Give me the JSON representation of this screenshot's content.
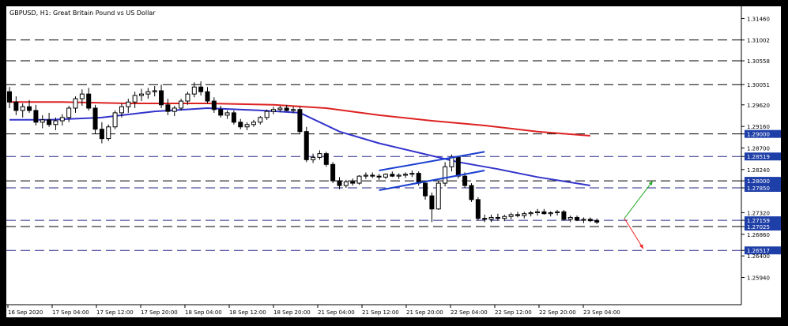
{
  "colors": {
    "window_bg": "#000000",
    "plot_bg": "#ffffff",
    "text": "#000000",
    "grid": "#cccccc",
    "candle": "#000000",
    "ma_fast": "#3333cc",
    "ma_slow": "#dd2222",
    "channel": "#1a3fd0",
    "black_level": "#000000",
    "blue_level": "#2a2a8a",
    "tag_bg": "#1f3fa8",
    "tag_text": "#ffffff",
    "arrow_up": "#22aa22",
    "arrow_down": "#ee2222"
  },
  "chart_data": {
    "type": "candlestick",
    "title": "GBPUSD, H1:  Great Britain Pound vs US Dollar",
    "ylim": [
      1.2536,
      1.3172
    ],
    "y_ticks": [
      "1.31460",
      "1.31002",
      "1.30558",
      "1.30051",
      "1.29620",
      "1.29160",
      "1.29000",
      "1.28700",
      "1.28519",
      "1.28240",
      "1.28000",
      "1.27850",
      "1.27320",
      "1.27159",
      "1.27025",
      "1.26860",
      "1.26517",
      "1.26400",
      "1.25940"
    ],
    "x_ticks": [
      "16 Sep 2020",
      "17 Sep 04:00",
      "17 Sep 12:00",
      "17 Sep 20:00",
      "18 Sep 04:00",
      "18 Sep 12:00",
      "18 Sep 20:00",
      "21 Sep 04:00",
      "21 Sep 12:00",
      "21 Sep 20:00",
      "22 Sep 04:00",
      "22 Sep 12:00",
      "22 Sep 20:00",
      "23 Sep 04:00"
    ],
    "candles": [
      [
        1.299,
        1.3,
        1.2955,
        1.2968
      ],
      [
        1.2968,
        1.298,
        1.294,
        1.295
      ],
      [
        1.295,
        1.2965,
        1.2935,
        1.2958
      ],
      [
        1.2958,
        1.2972,
        1.2945,
        1.295
      ],
      [
        1.295,
        1.2962,
        1.2918,
        1.2925
      ],
      [
        1.2925,
        1.294,
        1.2912,
        1.293
      ],
      [
        1.293,
        1.2945,
        1.2915,
        1.292
      ],
      [
        1.292,
        1.2935,
        1.2908,
        1.2928
      ],
      [
        1.2928,
        1.2942,
        1.2918,
        1.2935
      ],
      [
        1.2935,
        1.296,
        1.2925,
        1.2955
      ],
      [
        1.2955,
        1.298,
        1.2945,
        1.2975
      ],
      [
        1.2975,
        1.2995,
        1.296,
        1.2985
      ],
      [
        1.2985,
        1.2998,
        1.295,
        1.2955
      ],
      [
        1.2955,
        1.2962,
        1.29,
        1.291
      ],
      [
        1.291,
        1.2925,
        1.288,
        1.289
      ],
      [
        1.289,
        1.292,
        1.2885,
        1.2915
      ],
      [
        1.2915,
        1.295,
        1.291,
        1.2945
      ],
      [
        1.2945,
        1.2965,
        1.2935,
        1.2958
      ],
      [
        1.2958,
        1.2975,
        1.2945,
        1.2968
      ],
      [
        1.2968,
        1.299,
        1.2955,
        1.2982
      ],
      [
        1.2982,
        1.2996,
        1.297,
        1.2985
      ],
      [
        1.2985,
        1.2998,
        1.2975,
        1.299
      ],
      [
        1.299,
        1.3002,
        1.298,
        1.2992
      ],
      [
        1.2992,
        1.3005,
        1.2955,
        1.2962
      ],
      [
        1.2962,
        1.2975,
        1.294,
        1.2948
      ],
      [
        1.2948,
        1.296,
        1.2938,
        1.2955
      ],
      [
        1.2955,
        1.2975,
        1.295,
        1.297
      ],
      [
        1.297,
        1.299,
        1.2962,
        1.2985
      ],
      [
        1.2985,
        1.301,
        1.2978,
        1.3
      ],
      [
        1.3,
        1.3012,
        1.2982,
        1.299
      ],
      [
        1.299,
        1.3,
        1.2965,
        1.297
      ],
      [
        1.297,
        1.2978,
        1.2945,
        1.2952
      ],
      [
        1.2952,
        1.296,
        1.2935,
        1.294
      ],
      [
        1.294,
        1.295,
        1.2932,
        1.2945
      ],
      [
        1.2945,
        1.295,
        1.292,
        1.2925
      ],
      [
        1.2925,
        1.2932,
        1.291,
        1.2915
      ],
      [
        1.2915,
        1.2925,
        1.2908,
        1.292
      ],
      [
        1.292,
        1.293,
        1.2915,
        1.2925
      ],
      [
        1.2925,
        1.2938,
        1.292,
        1.2935
      ],
      [
        1.2935,
        1.2952,
        1.293,
        1.2948
      ],
      [
        1.2948,
        1.2958,
        1.2942,
        1.2952
      ],
      [
        1.2952,
        1.296,
        1.2946,
        1.2955
      ],
      [
        1.2955,
        1.2962,
        1.2948,
        1.295
      ],
      [
        1.295,
        1.2958,
        1.2944,
        1.2952
      ],
      [
        1.2952,
        1.2958,
        1.29,
        1.2905
      ],
      [
        1.2905,
        1.2915,
        1.284,
        1.2845
      ],
      [
        1.2845,
        1.2858,
        1.2838,
        1.285
      ],
      [
        1.285,
        1.2865,
        1.2845,
        1.2858
      ],
      [
        1.2858,
        1.2862,
        1.283,
        1.2835
      ],
      [
        1.2835,
        1.284,
        1.2795,
        1.28
      ],
      [
        1.28,
        1.2808,
        1.2782,
        1.279
      ],
      [
        1.279,
        1.2802,
        1.2785,
        1.2798
      ],
      [
        1.2798,
        1.2805,
        1.279,
        1.2795
      ],
      [
        1.2795,
        1.2812,
        1.2792,
        1.281
      ],
      [
        1.281,
        1.2818,
        1.2804,
        1.2812
      ],
      [
        1.2812,
        1.2818,
        1.2806,
        1.281
      ],
      [
        1.281,
        1.2815,
        1.2802,
        1.2808
      ],
      [
        1.2808,
        1.2816,
        1.2804,
        1.2814
      ],
      [
        1.2814,
        1.282,
        1.2808,
        1.281
      ],
      [
        1.281,
        1.2816,
        1.2804,
        1.2812
      ],
      [
        1.2812,
        1.2818,
        1.2806,
        1.2814
      ],
      [
        1.2814,
        1.2822,
        1.2808,
        1.2816
      ],
      [
        1.2816,
        1.282,
        1.279,
        1.2795
      ],
      [
        1.2795,
        1.28,
        1.276,
        1.2768
      ],
      [
        1.2768,
        1.2775,
        1.2712,
        1.274
      ],
      [
        1.274,
        1.28,
        1.2738,
        1.2795
      ],
      [
        1.2795,
        1.284,
        1.2788,
        1.283
      ],
      [
        1.283,
        1.2856,
        1.282,
        1.285
      ],
      [
        1.285,
        1.2852,
        1.2805,
        1.281
      ],
      [
        1.281,
        1.2818,
        1.2785,
        1.279
      ],
      [
        1.279,
        1.2795,
        1.2755,
        1.276
      ],
      [
        1.276,
        1.2765,
        1.2715,
        1.272
      ],
      [
        1.272,
        1.2728,
        1.2712,
        1.2718
      ],
      [
        1.2718,
        1.2728,
        1.2712,
        1.2722
      ],
      [
        1.2722,
        1.273,
        1.2715,
        1.272
      ],
      [
        1.272,
        1.2728,
        1.2714,
        1.2724
      ],
      [
        1.2724,
        1.2732,
        1.2718,
        1.2728
      ],
      [
        1.2728,
        1.2734,
        1.2722,
        1.2726
      ],
      [
        1.2726,
        1.2734,
        1.272,
        1.273
      ],
      [
        1.273,
        1.2736,
        1.2724,
        1.2732
      ],
      [
        1.2732,
        1.274,
        1.2726,
        1.2734
      ],
      [
        1.2734,
        1.274,
        1.2728,
        1.273
      ],
      [
        1.273,
        1.2735,
        1.2724,
        1.2732
      ],
      [
        1.2732,
        1.2738,
        1.2726,
        1.2734
      ],
      [
        1.2734,
        1.2738,
        1.2715,
        1.2718
      ],
      [
        1.2718,
        1.2726,
        1.2712,
        1.2722
      ],
      [
        1.2722,
        1.2726,
        1.2714,
        1.2716
      ],
      [
        1.2716,
        1.2722,
        1.271,
        1.2718
      ],
      [
        1.2718,
        1.2722,
        1.2712,
        1.2715
      ],
      [
        1.2715,
        1.272,
        1.2708,
        1.2712
      ]
    ],
    "ma_fast": [
      [
        0,
        1.293
      ],
      [
        6,
        1.293
      ],
      [
        14,
        1.2935
      ],
      [
        22,
        1.2948
      ],
      [
        30,
        1.2955
      ],
      [
        38,
        1.295
      ],
      [
        44,
        1.2945
      ],
      [
        50,
        1.2905
      ],
      [
        56,
        1.288
      ],
      [
        62,
        1.286
      ],
      [
        68,
        1.284
      ],
      [
        74,
        1.2825
      ],
      [
        80,
        1.2808
      ],
      [
        88,
        1.279
      ]
    ],
    "ma_slow": [
      [
        0,
        1.2968
      ],
      [
        8,
        1.2968
      ],
      [
        18,
        1.2965
      ],
      [
        30,
        1.2965
      ],
      [
        40,
        1.2962
      ],
      [
        48,
        1.2955
      ],
      [
        56,
        1.294
      ],
      [
        64,
        1.2928
      ],
      [
        72,
        1.2918
      ],
      [
        80,
        1.2905
      ],
      [
        88,
        1.2896
      ]
    ],
    "channel_upper": [
      [
        56,
        1.2822
      ],
      [
        72,
        1.2862
      ]
    ],
    "channel_lower": [
      [
        56,
        1.278
      ],
      [
        72,
        1.2822
      ]
    ],
    "black_levels": [
      1.31002,
      1.30558,
      1.30051,
      1.29,
      1.28,
      1.27025
    ],
    "blue_levels": [
      1.28519,
      1.2785,
      1.27159,
      1.26517
    ],
    "tagged_levels": [
      "1.29000",
      "1.28519",
      "1.28000",
      "1.27850",
      "1.27159",
      "1.27025",
      "1.26517"
    ],
    "arrow_up": {
      "from": [
        1.272
      ],
      "to": [
        1.28
      ]
    },
    "arrow_down": {
      "from": [
        1.272
      ],
      "to": [
        1.2655
      ]
    }
  }
}
